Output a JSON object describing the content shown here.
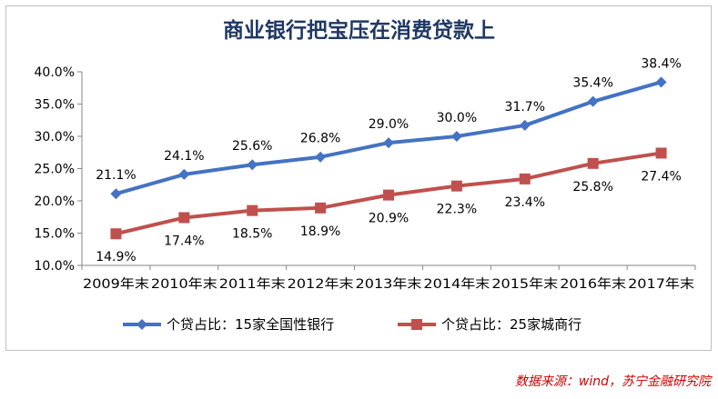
{
  "chart_data": {
    "type": "line",
    "title": "商业银行把宝压在消费贷款上",
    "categories": [
      "2009年末",
      "2010年末",
      "2011年末",
      "2012年末",
      "2013年末",
      "2014年末",
      "2015年末",
      "2016年末",
      "2017年末"
    ],
    "y_ticks": [
      "10.0%",
      "15.0%",
      "20.0%",
      "25.0%",
      "30.0%",
      "35.0%",
      "40.0%"
    ],
    "ylim": [
      10,
      40
    ],
    "legend_position": "bottom",
    "series": [
      {
        "name": "个贷占比：15家全国性银行",
        "color": "#4472c4",
        "marker": "diamond",
        "values": [
          21.1,
          24.1,
          25.6,
          26.8,
          29.0,
          30.0,
          31.7,
          35.4,
          38.4
        ],
        "labels": [
          "21.1%",
          "24.1%",
          "25.6%",
          "26.8%",
          "29.0%",
          "30.0%",
          "31.7%",
          "35.4%",
          "38.4%"
        ]
      },
      {
        "name": "个贷占比：25家城商行",
        "color": "#c0504d",
        "marker": "square",
        "values": [
          14.9,
          17.4,
          18.5,
          18.9,
          20.9,
          22.3,
          23.4,
          25.8,
          27.4
        ],
        "labels": [
          "14.9%",
          "17.4%",
          "18.5%",
          "18.9%",
          "20.9%",
          "22.3%",
          "23.4%",
          "25.8%",
          "27.4%"
        ]
      }
    ]
  },
  "source": "数据来源：wind，苏宁金融研究院"
}
